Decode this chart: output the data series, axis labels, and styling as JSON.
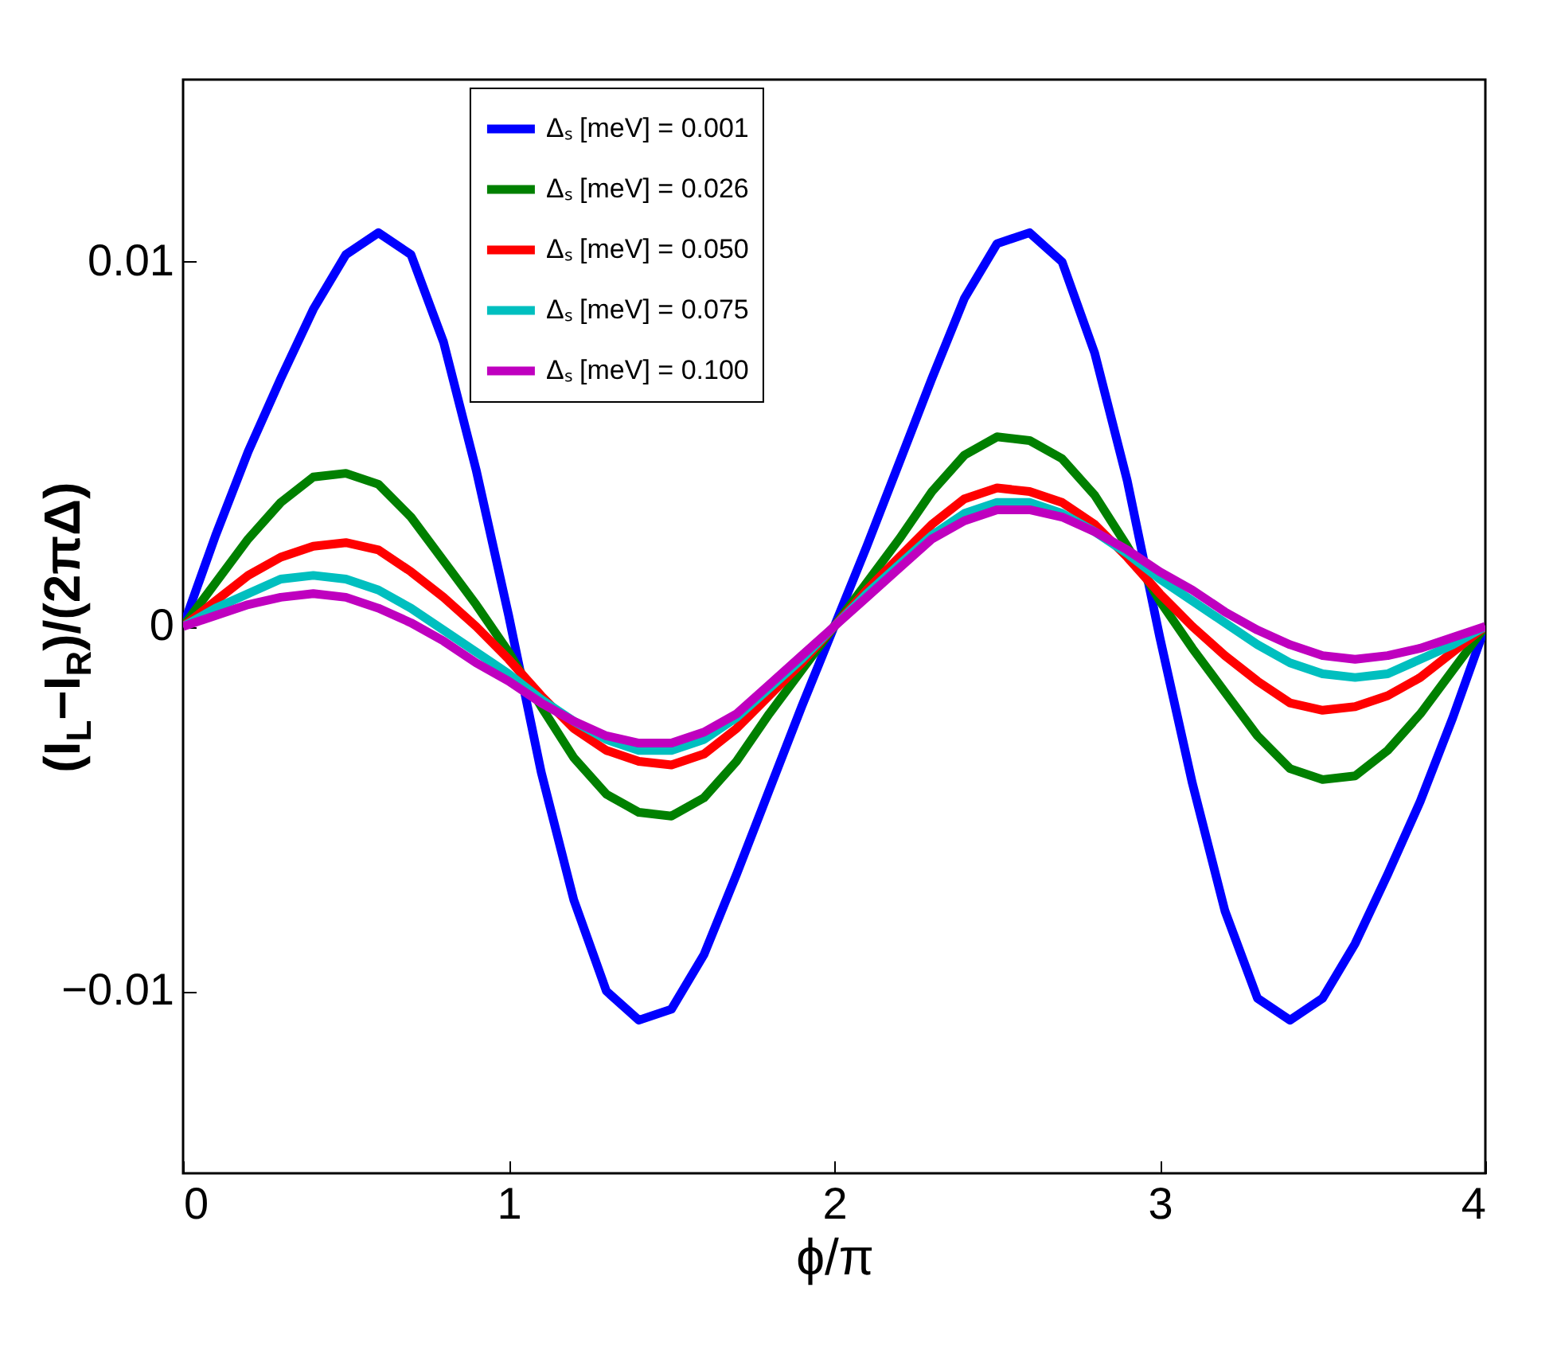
{
  "chart_data": {
    "type": "line",
    "xlabel": "ϕ/π",
    "ylabel": "(I$_{L}$−I$_{R}$)/(2πΔ)",
    "x": [
      0,
      0.1,
      0.2,
      0.3,
      0.4,
      0.5,
      0.6,
      0.7,
      0.8,
      0.9,
      1,
      1.1,
      1.2,
      1.3,
      1.4,
      1.5,
      1.6,
      1.7,
      1.8,
      1.9,
      2,
      2.1,
      2.2,
      2.3,
      2.4,
      2.5,
      2.6,
      2.7,
      2.8,
      2.9,
      3,
      3.1,
      3.2,
      3.3,
      3.4,
      3.5,
      3.6,
      3.7,
      3.8,
      3.9,
      4
    ],
    "xlim": [
      0,
      4
    ],
    "xticks": [
      0,
      1,
      2,
      3,
      4
    ],
    "ylim": [
      -0.015,
      0.015
    ],
    "yticks": [
      -0.01,
      0,
      0.01
    ],
    "legend": "top",
    "grid": false,
    "line_style": "solid",
    "series": [
      {
        "name": "Δₛ [meV] = 0.001",
        "color": "#0000ff",
        "values": [
          0,
          0.0025,
          0.0048,
          0.0068,
          0.0087,
          0.0102,
          0.0108,
          0.0102,
          0.0078,
          0.0043,
          0.0003,
          -0.004,
          -0.0075,
          -0.01,
          -0.0108,
          -0.0105,
          -0.009,
          -0.0068,
          -0.0045,
          -0.0022,
          0,
          0.0022,
          0.0045,
          0.0068,
          0.009,
          0.0105,
          0.0108,
          0.01,
          0.0075,
          0.004,
          -0.0003,
          -0.0043,
          -0.0078,
          -0.0102,
          -0.0108,
          -0.0102,
          -0.0087,
          -0.0068,
          -0.0048,
          -0.0025,
          0
        ]
      },
      {
        "name": "Δₛ [meV] = 0.026",
        "color": "#008000",
        "values": [
          0,
          0.0012,
          0.0024,
          0.0034,
          0.0041,
          0.0042,
          0.0039,
          0.003,
          0.0018,
          0.0006,
          -0.0007,
          -0.0022,
          -0.0036,
          -0.0046,
          -0.0051,
          -0.0052,
          -0.0047,
          -0.0037,
          -0.0024,
          -0.0012,
          0,
          0.0012,
          0.0024,
          0.0037,
          0.0047,
          0.0052,
          0.0051,
          0.0046,
          0.0036,
          0.0022,
          0.0007,
          -0.0006,
          -0.0018,
          -0.003,
          -0.0039,
          -0.0042,
          -0.0041,
          -0.0034,
          -0.0024,
          -0.0012,
          0
        ]
      },
      {
        "name": "Δₛ [meV] = 0.050",
        "color": "#ff0000",
        "values": [
          0,
          0.0007,
          0.0014,
          0.0019,
          0.0022,
          0.0023,
          0.0021,
          0.0015,
          0.0008,
          0,
          -0.0009,
          -0.0019,
          -0.0028,
          -0.0034,
          -0.0037,
          -0.0038,
          -0.0035,
          -0.0028,
          -0.0019,
          -0.001,
          0,
          0.001,
          0.0019,
          0.0028,
          0.0035,
          0.0038,
          0.0037,
          0.0034,
          0.0028,
          0.0019,
          0.0009,
          0,
          -0.0008,
          -0.0015,
          -0.0021,
          -0.0023,
          -0.0022,
          -0.0019,
          -0.0014,
          -0.0007,
          0
        ]
      },
      {
        "name": "Δₛ [meV] = 0.075",
        "color": "#00bfbf",
        "values": [
          0,
          0.0005,
          0.0009,
          0.0013,
          0.0014,
          0.0013,
          0.001,
          0.0005,
          -0.0001,
          -0.0007,
          -0.0013,
          -0.002,
          -0.0026,
          -0.0031,
          -0.0034,
          -0.0034,
          -0.0031,
          -0.0025,
          -0.0017,
          -0.0009,
          0,
          0.0009,
          0.0017,
          0.0025,
          0.0031,
          0.0034,
          0.0034,
          0.0031,
          0.0026,
          0.002,
          0.0013,
          0.0007,
          0.0001,
          -0.0005,
          -0.001,
          -0.0013,
          -0.0014,
          -0.0013,
          -0.0009,
          -0.0005,
          0
        ]
      },
      {
        "name": "Δₛ [meV] = 0.100",
        "color": "#bf00bf",
        "values": [
          0,
          0.0003,
          0.0006,
          0.0008,
          0.0009,
          0.0008,
          0.0005,
          0.0001,
          -0.0004,
          -0.001,
          -0.0015,
          -0.0021,
          -0.0026,
          -0.003,
          -0.0032,
          -0.0032,
          -0.0029,
          -0.0024,
          -0.0016,
          -0.0008,
          0,
          0.0008,
          0.0016,
          0.0024,
          0.0029,
          0.0032,
          0.0032,
          0.003,
          0.0026,
          0.0021,
          0.0015,
          0.001,
          0.0004,
          -0.0001,
          -0.0005,
          -0.0008,
          -0.0009,
          -0.0008,
          -0.0006,
          -0.0003,
          0
        ]
      }
    ]
  }
}
